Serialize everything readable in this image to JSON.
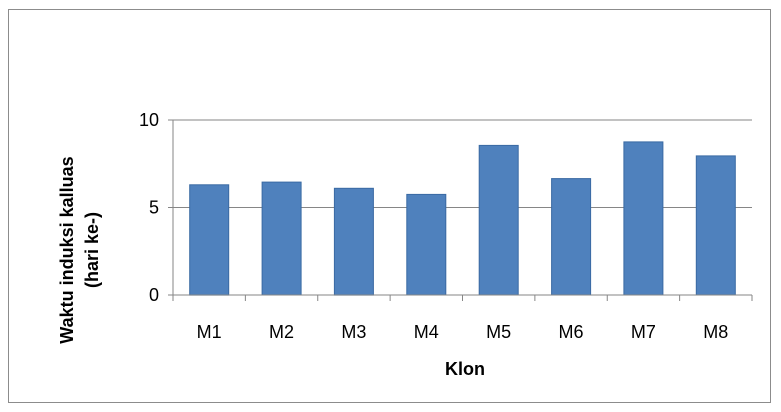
{
  "chart_data": {
    "type": "bar",
    "categories": [
      "M1",
      "M2",
      "M3",
      "M4",
      "M5",
      "M6",
      "M7",
      "M8"
    ],
    "values": [
      6.3,
      6.45,
      6.1,
      5.75,
      8.55,
      6.65,
      8.75,
      7.95
    ],
    "title": "",
    "xlabel": "Klon",
    "ylabel_line1": "Waktu induksi kalluas",
    "ylabel_line2": "(hari ke-)",
    "ylim": [
      0,
      10
    ],
    "yticks": [
      0,
      5,
      10
    ],
    "grid": true,
    "legend": "none",
    "colors": {
      "bar": "#4f81bd",
      "bar_edge": "#3a6aa3",
      "grid": "#868686",
      "axis": "#868686"
    }
  }
}
